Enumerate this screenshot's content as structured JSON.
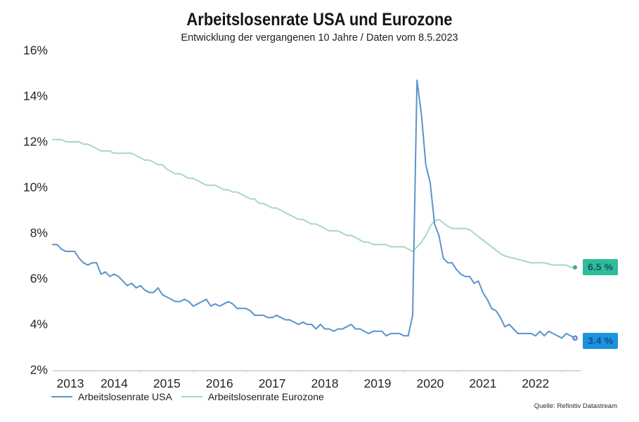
{
  "title": "Arbeitslosenrate USA und Eurozone",
  "subtitle": "Entwicklung der vergangenen 10 Jahre / Daten vom 8.5.2023",
  "source": "Quelle: Refinitiv Datastream",
  "chart_data": {
    "type": "line",
    "x_start": "2013-05",
    "x_freq": "monthly",
    "x_tick_labels": [
      "2013",
      "2014",
      "2015",
      "2016",
      "2017",
      "2018",
      "2019",
      "2020",
      "2021",
      "2022"
    ],
    "y_tick_labels": [
      "16%",
      "14%",
      "12%",
      "10%",
      "8%",
      "6%",
      "4%",
      "2%"
    ],
    "ylim": [
      2,
      16
    ],
    "grid": false,
    "legend_position": "bottom-left",
    "axis_color": "#c6c6c6",
    "series": [
      {
        "name": "Arbeitslosenrate USA",
        "color": "#5b93c9",
        "end_label": "3.4 %",
        "end_label_bg": "#1e93dd",
        "end_label_color": "#134d8e",
        "values": [
          7.5,
          7.5,
          7.3,
          7.2,
          7.2,
          7.2,
          6.9,
          6.7,
          6.6,
          6.7,
          6.7,
          6.2,
          6.3,
          6.1,
          6.2,
          6.1,
          5.9,
          5.7,
          5.8,
          5.6,
          5.7,
          5.5,
          5.4,
          5.4,
          5.6,
          5.3,
          5.2,
          5.1,
          5.0,
          5.0,
          5.1,
          5.0,
          4.8,
          4.9,
          5.0,
          5.1,
          4.8,
          4.9,
          4.8,
          4.9,
          5.0,
          4.9,
          4.7,
          4.7,
          4.7,
          4.6,
          4.4,
          4.4,
          4.4,
          4.3,
          4.3,
          4.4,
          4.3,
          4.2,
          4.2,
          4.1,
          4.0,
          4.1,
          4.0,
          4.0,
          3.8,
          4.0,
          3.8,
          3.8,
          3.7,
          3.8,
          3.8,
          3.9,
          4.0,
          3.8,
          3.8,
          3.7,
          3.6,
          3.7,
          3.7,
          3.7,
          3.5,
          3.6,
          3.6,
          3.6,
          3.5,
          3.5,
          4.4,
          14.7,
          13.2,
          11.0,
          10.2,
          8.4,
          7.9,
          6.9,
          6.7,
          6.7,
          6.4,
          6.2,
          6.1,
          6.1,
          5.8,
          5.9,
          5.4,
          5.1,
          4.7,
          4.6,
          4.3,
          3.9,
          4.0,
          3.8,
          3.6,
          3.6,
          3.6,
          3.6,
          3.5,
          3.7,
          3.5,
          3.7,
          3.6,
          3.5,
          3.4,
          3.6,
          3.5,
          3.4
        ]
      },
      {
        "name": "Arbeitslosenrate Eurozone",
        "color": "#a7d7c3",
        "end_label": "6.5 %",
        "end_label_bg": "#2fbc9a",
        "end_label_color": "#0e5a66",
        "values": [
          12.1,
          12.1,
          12.1,
          12.0,
          12.0,
          12.0,
          12.0,
          11.9,
          11.9,
          11.8,
          11.7,
          11.6,
          11.6,
          11.6,
          11.5,
          11.5,
          11.5,
          11.5,
          11.5,
          11.4,
          11.3,
          11.2,
          11.2,
          11.1,
          11.0,
          11.0,
          10.8,
          10.7,
          10.6,
          10.6,
          10.5,
          10.4,
          10.4,
          10.3,
          10.2,
          10.1,
          10.1,
          10.1,
          10.0,
          9.9,
          9.9,
          9.8,
          9.8,
          9.7,
          9.6,
          9.5,
          9.5,
          9.3,
          9.3,
          9.2,
          9.1,
          9.1,
          9.0,
          8.9,
          8.8,
          8.7,
          8.6,
          8.6,
          8.5,
          8.4,
          8.4,
          8.3,
          8.2,
          8.1,
          8.1,
          8.1,
          8.0,
          7.9,
          7.9,
          7.8,
          7.7,
          7.6,
          7.6,
          7.5,
          7.5,
          7.5,
          7.5,
          7.4,
          7.4,
          7.4,
          7.4,
          7.3,
          7.2,
          7.4,
          7.6,
          7.9,
          8.3,
          8.55,
          8.6,
          8.45,
          8.3,
          8.2,
          8.2,
          8.2,
          8.2,
          8.15,
          8.0,
          7.85,
          7.7,
          7.55,
          7.4,
          7.25,
          7.1,
          7.0,
          6.95,
          6.9,
          6.85,
          6.8,
          6.75,
          6.7,
          6.7,
          6.7,
          6.7,
          6.65,
          6.6,
          6.6,
          6.6,
          6.6,
          6.5,
          6.5
        ]
      }
    ]
  }
}
